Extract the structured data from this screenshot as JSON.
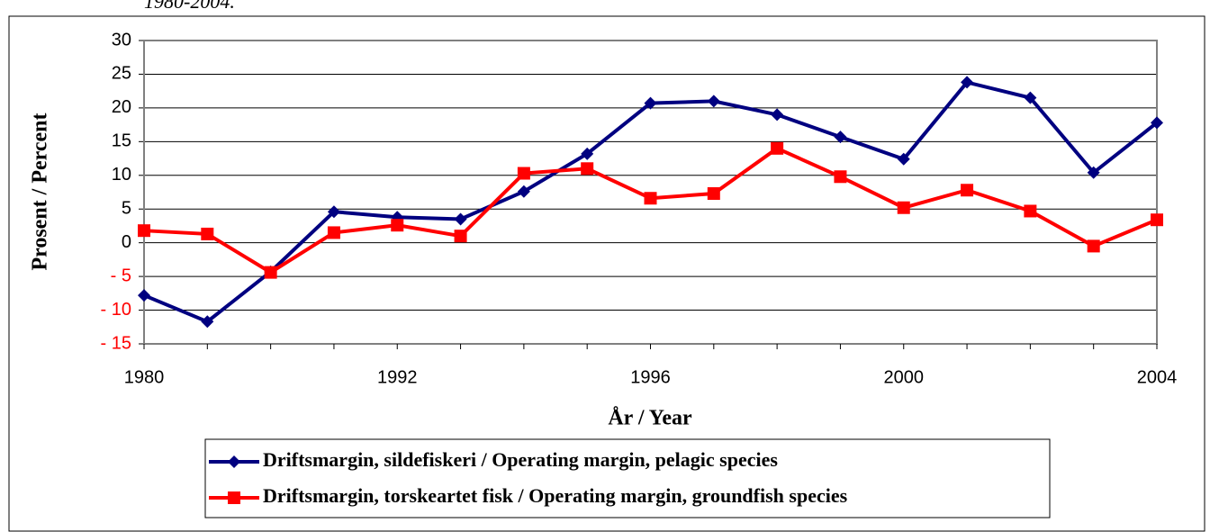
{
  "chart_data": {
    "type": "line",
    "caption_fragment": "1980-2004.",
    "ylabel": "Prosent / Percent",
    "xlabel": "År / Year",
    "categories": [
      "1980",
      null,
      null,
      null,
      "1992",
      null,
      null,
      null,
      "1996",
      null,
      null,
      null,
      "2000",
      null,
      null,
      null,
      "2004"
    ],
    "series": [
      {
        "name": "Driftsmargin, sildefiskeri / Operating margin, pelagic species",
        "color": "#000080",
        "marker": "diamond",
        "values": [
          -7.8,
          -11.7,
          -4.3,
          4.6,
          3.8,
          3.5,
          7.6,
          13.2,
          20.7,
          21.0,
          19.0,
          15.7,
          12.4,
          23.8,
          21.5,
          10.4,
          17.8
        ]
      },
      {
        "name": "Driftsmargin, torskeartet fisk / Operating margin, groundfish species",
        "color": "#ff0000",
        "marker": "square",
        "values": [
          1.8,
          1.3,
          -4.4,
          1.5,
          2.6,
          1.0,
          10.3,
          11.0,
          6.6,
          7.3,
          14.0,
          9.8,
          5.2,
          7.8,
          4.7,
          -0.5,
          3.4
        ]
      }
    ],
    "ylim": [
      -15,
      30
    ],
    "yticks": [
      {
        "value": -15,
        "label": "- 15"
      },
      {
        "value": -10,
        "label": "- 10"
      },
      {
        "value": -5,
        "label": "- 5"
      },
      0,
      5,
      10,
      15,
      20,
      25,
      30
    ],
    "grid": true,
    "legend": "bottom"
  }
}
